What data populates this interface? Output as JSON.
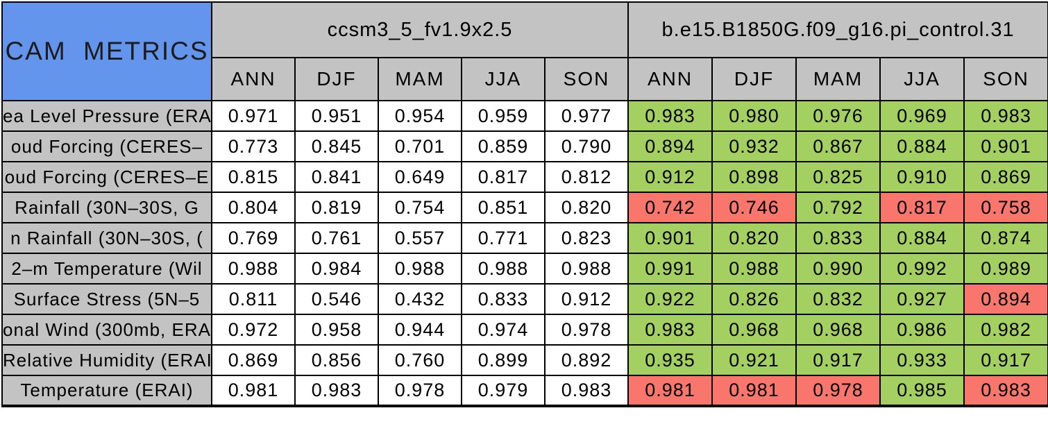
{
  "colors": {
    "blue": "#6495ED",
    "grey": "#C3C3C3",
    "green": "#A3D060",
    "red": "#F8766C",
    "border": "#000000",
    "baseline_cell": "#FFFFFF"
  },
  "chart_data": {
    "type": "table",
    "title": "CAM METRICS",
    "column_groups": [
      "ccsm3_5_fv1.9x2.5",
      "b.e15.B1850G.f09_g16.pi_control.31"
    ],
    "season_columns": [
      "ANN",
      "DJF",
      "MAM",
      "JJA",
      "SON"
    ],
    "rows": [
      {
        "label": "ea Level Pressure (ERA",
        "model1": [
          "0.971",
          "0.951",
          "0.954",
          "0.959",
          "0.977"
        ],
        "model2": [
          "0.983",
          "0.980",
          "0.976",
          "0.969",
          "0.983"
        ],
        "model2_status": [
          "better",
          "better",
          "better",
          "better",
          "better"
        ]
      },
      {
        "label": "oud Forcing (CERES–",
        "model1": [
          "0.773",
          "0.845",
          "0.701",
          "0.859",
          "0.790"
        ],
        "model2": [
          "0.894",
          "0.932",
          "0.867",
          "0.884",
          "0.901"
        ],
        "model2_status": [
          "better",
          "better",
          "better",
          "better",
          "better"
        ]
      },
      {
        "label": "oud Forcing (CERES–E",
        "model1": [
          "0.815",
          "0.841",
          "0.649",
          "0.817",
          "0.812"
        ],
        "model2": [
          "0.912",
          "0.898",
          "0.825",
          "0.910",
          "0.869"
        ],
        "model2_status": [
          "better",
          "better",
          "better",
          "better",
          "better"
        ]
      },
      {
        "label": "Rainfall (30N–30S, G",
        "model1": [
          "0.804",
          "0.819",
          "0.754",
          "0.851",
          "0.820"
        ],
        "model2": [
          "0.742",
          "0.746",
          "0.792",
          "0.817",
          "0.758"
        ],
        "model2_status": [
          "worse",
          "worse",
          "better",
          "worse",
          "worse"
        ]
      },
      {
        "label": "n Rainfall (30N–30S, (",
        "model1": [
          "0.769",
          "0.761",
          "0.557",
          "0.771",
          "0.823"
        ],
        "model2": [
          "0.901",
          "0.820",
          "0.833",
          "0.884",
          "0.874"
        ],
        "model2_status": [
          "better",
          "better",
          "better",
          "better",
          "better"
        ]
      },
      {
        "label": "2–m Temperature (Wil",
        "model1": [
          "0.988",
          "0.984",
          "0.988",
          "0.988",
          "0.988"
        ],
        "model2": [
          "0.991",
          "0.988",
          "0.990",
          "0.992",
          "0.989"
        ],
        "model2_status": [
          "better",
          "better",
          "better",
          "better",
          "better"
        ]
      },
      {
        "label": "Surface Stress (5N–5",
        "model1": [
          "0.811",
          "0.546",
          "0.432",
          "0.833",
          "0.912"
        ],
        "model2": [
          "0.922",
          "0.826",
          "0.832",
          "0.927",
          "0.894"
        ],
        "model2_status": [
          "better",
          "better",
          "better",
          "better",
          "worse"
        ]
      },
      {
        "label": "onal Wind (300mb, ERA",
        "model1": [
          "0.972",
          "0.958",
          "0.944",
          "0.974",
          "0.978"
        ],
        "model2": [
          "0.983",
          "0.968",
          "0.968",
          "0.986",
          "0.982"
        ],
        "model2_status": [
          "better",
          "better",
          "better",
          "better",
          "better"
        ]
      },
      {
        "label": "Relative Humidity (ERAI",
        "model1": [
          "0.869",
          "0.856",
          "0.760",
          "0.899",
          "0.892"
        ],
        "model2": [
          "0.935",
          "0.921",
          "0.917",
          "0.933",
          "0.917"
        ],
        "model2_status": [
          "better",
          "better",
          "better",
          "better",
          "better"
        ]
      },
      {
        "label": "Temperature (ERAI)",
        "model1": [
          "0.981",
          "0.983",
          "0.978",
          "0.979",
          "0.983"
        ],
        "model2": [
          "0.981",
          "0.981",
          "0.978",
          "0.985",
          "0.983"
        ],
        "model2_status": [
          "worse",
          "worse",
          "worse",
          "better",
          "worse"
        ]
      }
    ]
  }
}
